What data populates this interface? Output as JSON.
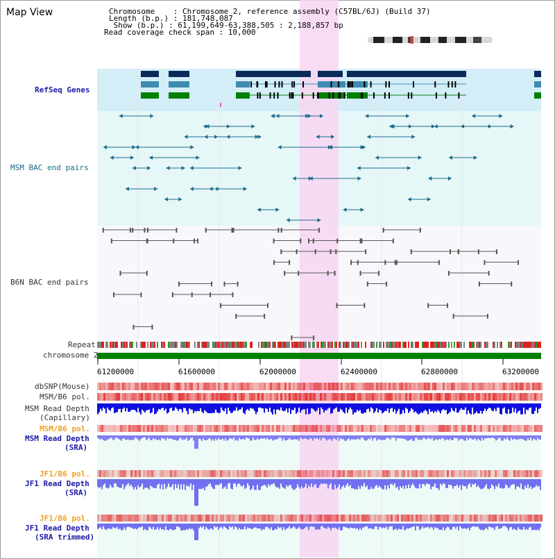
{
  "title": "Map View",
  "header": {
    "chromosome_line": "Chromosome    : Chromosome 2, reference assembly (C57BL/6J) (Build 37)",
    "length_line": "Length (b.p.) : 181,748,087",
    "show_line": " Show (b.p.) : 61,199,649-63,388,505 : 2,188,857 bp",
    "coverage_line": "Read coverage check span : 10,000"
  },
  "tracks": {
    "refseq": "RefSeq Genes",
    "msm_bac": "MSM BAC end pairs",
    "b6n_bac": "B6N BAC end pairs",
    "repeat": "Repeat",
    "chromosome": "chromosome 2",
    "dbsnp": "dbSNP(Mouse)",
    "msm_b6_pol_1": "MSM/B6 pol.",
    "msm_read_depth_cap_1": "MSM Read Depth",
    "msm_read_depth_cap_2": "(Capillary)",
    "msm_b6_pol_2": "MSM/B6 pol.",
    "msm_read_depth_sra_1": "MSM Read Depth",
    "msm_read_depth_sra_2": "(SRA)",
    "jf1_b6_pol_1": "JF1/B6 pol.",
    "jf1_read_depth_sra_1": "JF1 Read Depth",
    "jf1_read_depth_sra_2": "(SRA)",
    "jf1_b6_pol_2": "JF1/B6 pol.",
    "jf1_read_depth_trim_1": "JF1 Read Depth",
    "jf1_read_depth_trim_2": "(SRA trimmed)"
  },
  "axis": {
    "ticks": [
      "61200000",
      "61600000",
      "62000000",
      "62400000",
      "62800000",
      "63200000"
    ]
  },
  "colors": {
    "highlight": "#f7d6f2",
    "refseq_bg": "#d4eef8",
    "msm_bg": "#e6f7f7",
    "navy": "#0a2a5a",
    "steel": "#3f8ab0",
    "green": "#008000",
    "teal": "#1a6a8a",
    "grey": "#555555",
    "red": "#e02020",
    "blue": "#2020e0"
  }
}
